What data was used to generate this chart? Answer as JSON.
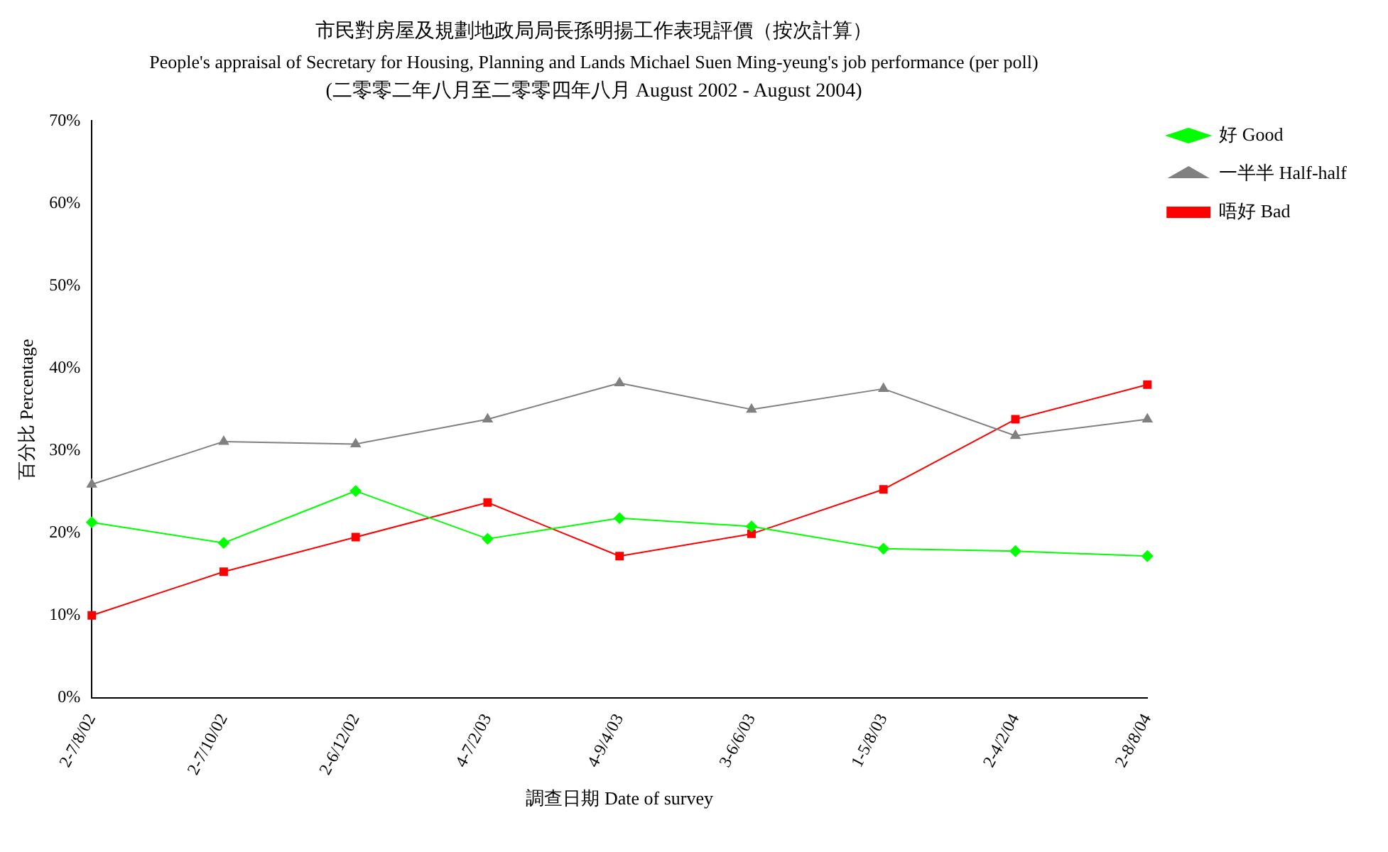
{
  "chart_data": {
    "type": "line",
    "title": "市民對房屋及規劃地政局局長孫明揚工作表現評價（按次計算）",
    "subtitle": "People's appraisal of Secretary for Housing, Planning and Lands Michael Suen Ming-yeung's job performance (per poll)",
    "annotations": [
      "(二零零二年八月至二零零四年八月 August 2002 - August 2004)"
    ],
    "xlabel": "調查日期 Date of survey",
    "ylabel": "百分比 Percentage",
    "categories": [
      "2-7/8/02",
      "2-7/10/02",
      "2-6/12/02",
      "4-7/2/03",
      "4-9/4/03",
      "3-6/6/03",
      "1-5/8/03",
      "2-4/2/04",
      "2-8/8/04"
    ],
    "series": [
      {
        "name": "好 Good",
        "color": "#00ff00",
        "marker": "diamond",
        "values": [
          21.3,
          18.8,
          25.1,
          19.3,
          21.8,
          20.8,
          18.1,
          17.8,
          17.2
        ]
      },
      {
        "name": "一半半 Half-half",
        "color": "#808080",
        "marker": "triangle",
        "values": [
          25.9,
          31.1,
          30.8,
          33.8,
          38.2,
          35.0,
          37.5,
          31.8,
          33.8
        ]
      },
      {
        "name": "唔好 Bad",
        "color": "#ff0000",
        "marker": "square",
        "values": [
          10.0,
          15.3,
          19.5,
          23.7,
          17.2,
          19.9,
          25.3,
          33.8,
          38.0
        ]
      }
    ],
    "ylim": [
      0,
      70
    ],
    "yticks": [
      {
        "value": 0,
        "label": "0%"
      },
      {
        "value": 10,
        "label": "10%"
      },
      {
        "value": 20,
        "label": "20%"
      },
      {
        "value": 30,
        "label": "30%"
      },
      {
        "value": 40,
        "label": "40%"
      },
      {
        "value": 50,
        "label": "50%"
      },
      {
        "value": 60,
        "label": "60%"
      },
      {
        "value": 70,
        "label": "70%"
      }
    ],
    "grid": false,
    "legend": "top right"
  }
}
